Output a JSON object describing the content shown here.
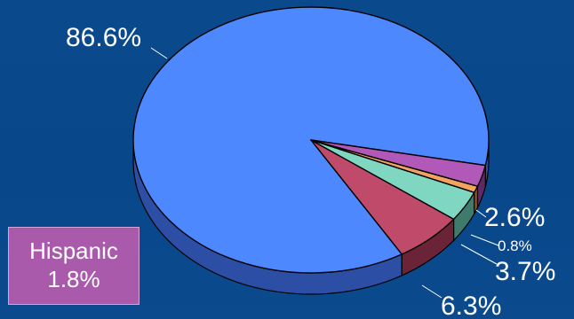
{
  "chart_data": {
    "type": "pie",
    "style": "3d",
    "slices": [
      {
        "label": "86.6%",
        "value": 86.6,
        "color": "#4d88ff",
        "side": "#2c4fa5"
      },
      {
        "label": "6.3%",
        "value": 6.3,
        "color": "#c04a69",
        "side": "#6b2337"
      },
      {
        "label": "3.7%",
        "value": 3.7,
        "color": "#7fd6c1",
        "side": "#3e7b6c"
      },
      {
        "label": "0.8%",
        "value": 0.8,
        "color": "#f1a35f",
        "side": "#8a5429"
      },
      {
        "label": "2.6%",
        "value": 2.6,
        "color": "#b258b8",
        "side": "#5f2a63"
      }
    ],
    "callout": {
      "line1": "Hispanic",
      "line2": "1.8%",
      "color": "#a95aab"
    }
  }
}
